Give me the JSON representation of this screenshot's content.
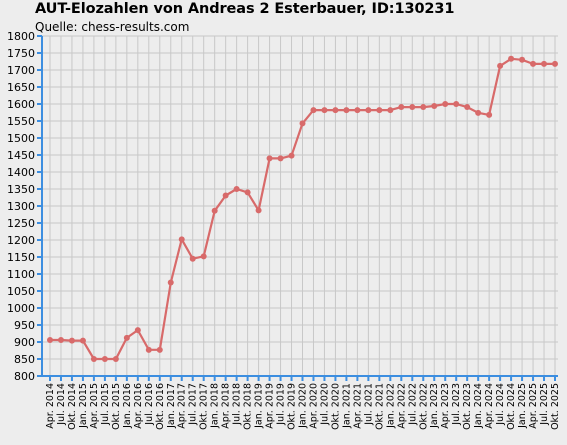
{
  "title": "AUT-Elozahlen von Andreas 2 Esterbauer, ID:130231",
  "subtitle": "Quelle: chess-results.com",
  "colors": {
    "background": "#ededed",
    "grid": "#c8c8c8",
    "axis": "#3c8ee0",
    "line": "#d86a6a",
    "marker": "#d86a6a"
  },
  "chart_data": {
    "type": "line",
    "title": "AUT-Elozahlen von Andreas 2 Esterbauer, ID:130231",
    "subtitle": "Quelle: chess-results.com",
    "xlabel": "",
    "ylabel": "",
    "ylim": [
      800,
      1800
    ],
    "ystep": 50,
    "grid": true,
    "categories": [
      "Apr. 2014",
      "Jul. 2014",
      "Okt. 2014",
      "Jan. 2015",
      "Apr. 2015",
      "Jul. 2015",
      "Okt. 2015",
      "Jan. 2016",
      "Apr. 2016",
      "Jul. 2016",
      "Okt. 2016",
      "Jan. 2017",
      "Apr. 2017",
      "Jul. 2017",
      "Okt. 2017",
      "Jan. 2018",
      "Apr. 2018",
      "Jul. 2018",
      "Okt. 2018",
      "Jan. 2019",
      "Apr. 2019",
      "Jul. 2019",
      "Okt. 2019",
      "Jan. 2020",
      "Apr. 2020",
      "Jul. 2020",
      "Okt. 2020",
      "Jan. 2021",
      "Apr. 2021",
      "Jul. 2021",
      "Okt. 2021",
      "Jan. 2022",
      "Apr. 2022",
      "Jul. 2022",
      "Okt. 2022",
      "Jan. 2023",
      "Apr. 2023",
      "Jul. 2023",
      "Okt. 2023",
      "Jan. 2024",
      "Apr. 2024",
      "Jul. 2024",
      "Okt. 2024",
      "Jan. 2025",
      "Apr. 2025",
      "Jul. 2025",
      "Okt. 2025"
    ],
    "series": [
      {
        "values": [
          906,
          906,
          904,
          904,
          850,
          850,
          850,
          912,
          935,
          877,
          877,
          1075,
          1202,
          1145,
          1152,
          1286,
          1331,
          1350,
          1340,
          1287,
          1440,
          1440,
          1448,
          1543,
          1582,
          1582,
          1582,
          1582,
          1582,
          1582,
          1582,
          1582,
          1591,
          1591,
          1591,
          1594,
          1600,
          1600,
          1591,
          1574,
          1568,
          1712,
          1733,
          1730,
          1718,
          1718,
          1718
        ]
      }
    ]
  }
}
